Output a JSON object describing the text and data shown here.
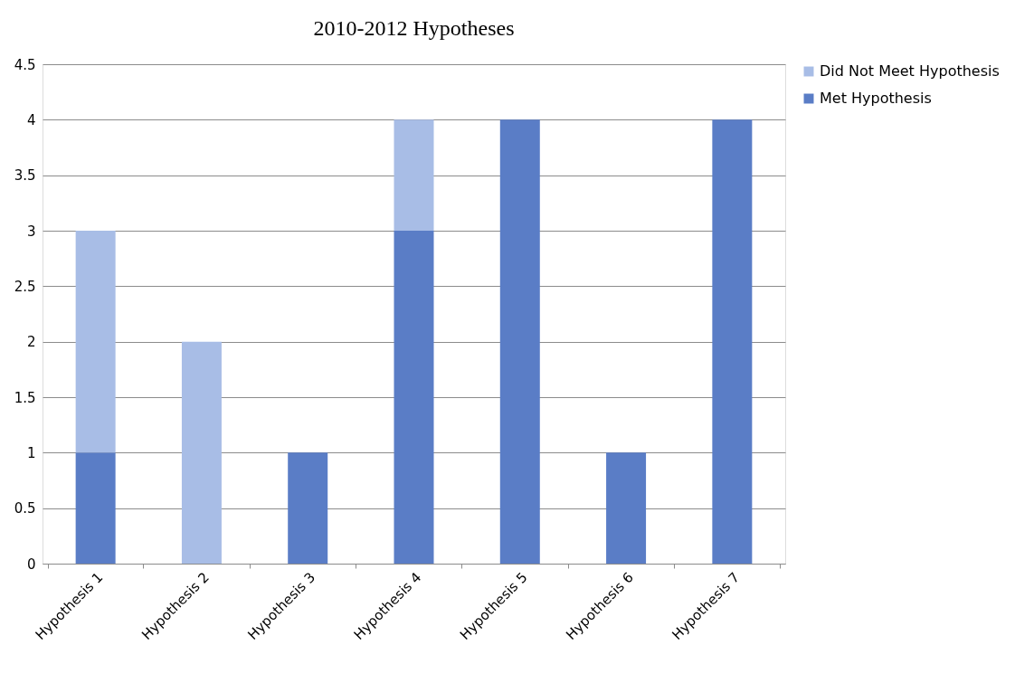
{
  "chart_data": {
    "type": "bar",
    "title": "2010-2012  Hypotheses",
    "stacked": true,
    "categories": [
      "Hypothesis 1",
      "Hypothesis 2",
      "Hypothesis 3",
      "Hypothesis 4",
      "Hypothesis 5",
      "Hypothesis 6",
      "Hypothesis 7"
    ],
    "series": [
      {
        "name": "Met Hypothesis",
        "color": "#5a7dc6",
        "values": [
          1,
          0,
          1,
          3,
          4,
          1,
          4
        ]
      },
      {
        "name": "Did Not Meet Hypothesis",
        "color": "#a8bde6",
        "values": [
          2,
          2,
          0,
          1,
          0,
          0,
          0
        ]
      }
    ],
    "ylim": [
      0,
      4.5
    ],
    "yticks": [
      0,
      0.5,
      1,
      1.5,
      2,
      2.5,
      3,
      3.5,
      4,
      4.5
    ],
    "grid": "y",
    "legend": "right"
  }
}
